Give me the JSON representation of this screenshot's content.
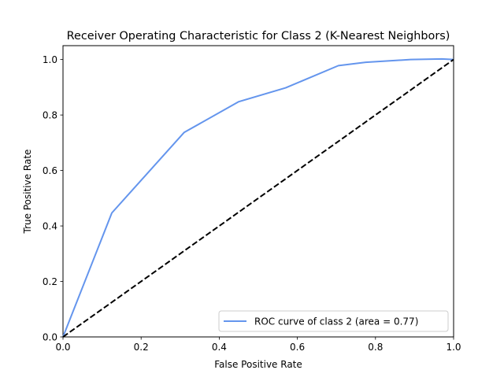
{
  "chart_data": {
    "type": "line",
    "title": "Receiver Operating Characteristic for Class 2 (K-Nearest Neighbors)",
    "xlabel": "False Positive Rate",
    "ylabel": "True Positive Rate",
    "xlim": [
      0.0,
      1.0
    ],
    "ylim": [
      0.0,
      1.05
    ],
    "xticks": [
      0.0,
      0.2,
      0.4,
      0.6,
      0.8,
      1.0
    ],
    "yticks": [
      0.0,
      0.2,
      0.4,
      0.6,
      0.8,
      1.0
    ],
    "xtick_labels": [
      "0.0",
      "0.2",
      "0.4",
      "0.6",
      "0.8",
      "1.0"
    ],
    "ytick_labels": [
      "0.0",
      "0.2",
      "0.4",
      "0.6",
      "0.8",
      "1.0"
    ],
    "grid": false,
    "legend_position": "lower-right",
    "series": [
      {
        "name": "ROC curve of class 2 (area = 0.77)",
        "color": "#6495ed",
        "line_style": "solid",
        "x": [
          0.0,
          0.125,
          0.31,
          0.45,
          0.57,
          0.705,
          0.775,
          0.89,
          0.97,
          1.0
        ],
        "y": [
          0.0,
          0.447,
          0.737,
          0.848,
          0.898,
          0.978,
          0.99,
          1.0,
          1.002,
          1.0
        ]
      },
      {
        "color": "#000000",
        "line_style": "dashed",
        "x": [
          0.0,
          1.0
        ],
        "y": [
          0.0,
          1.0
        ]
      }
    ]
  }
}
